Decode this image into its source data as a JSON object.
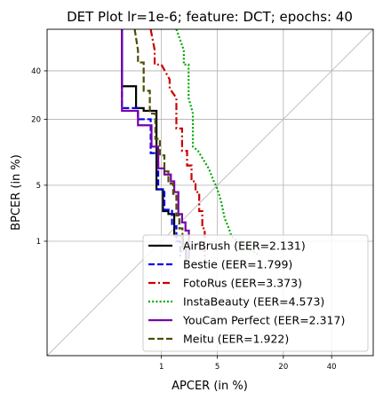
{
  "chart_data": {
    "type": "line",
    "title": "DET Plot lr=1e-6; feature: DCT; epochs: 40",
    "xlabel": "APCER (in %)",
    "ylabel": "BPCER (in %)",
    "x_scale": "probit",
    "y_scale": "probit",
    "xlim": [
      0.01,
      60
    ],
    "ylim": [
      0.01,
      60
    ],
    "x_ticks": [
      "1",
      "5",
      "20",
      "40"
    ],
    "x_tick_values": [
      1,
      5,
      20,
      40
    ],
    "y_ticks": [
      "1",
      "5",
      "20",
      "40"
    ],
    "y_tick_values": [
      1,
      5,
      20,
      40
    ],
    "grid": true,
    "legend_position": "lower right",
    "diagonal": true,
    "series": [
      {
        "name": "AirBrush (EER=2.131)",
        "color": "#000000",
        "dash": "solid",
        "points": [
          [
            0.25,
            60
          ],
          [
            0.25,
            33
          ],
          [
            0.42,
            33
          ],
          [
            0.42,
            24
          ],
          [
            0.55,
            24
          ],
          [
            0.55,
            23
          ],
          [
            0.85,
            23
          ],
          [
            0.85,
            4.5
          ],
          [
            1.05,
            4.5
          ],
          [
            1.05,
            2.5
          ],
          [
            1.25,
            2.5
          ],
          [
            1.25,
            2.3
          ],
          [
            1.5,
            2.3
          ],
          [
            1.5,
            1.2
          ],
          [
            1.95,
            1.2
          ],
          [
            1.95,
            0.9
          ],
          [
            2.131,
            0.9
          ],
          [
            2.131,
            0.5
          ]
        ]
      },
      {
        "name": "Bestie (EER=1.799)",
        "color": "#0000ee",
        "dash": "dashed",
        "points": [
          [
            0.25,
            60
          ],
          [
            0.25,
            24
          ],
          [
            0.45,
            24
          ],
          [
            0.45,
            20
          ],
          [
            0.7,
            20
          ],
          [
            0.7,
            10.5
          ],
          [
            0.9,
            10.5
          ],
          [
            0.9,
            4.5
          ],
          [
            1.1,
            4.5
          ],
          [
            1.1,
            2.6
          ],
          [
            1.4,
            2.6
          ],
          [
            1.4,
            1.6
          ],
          [
            1.6,
            1.6
          ],
          [
            1.6,
            1.0
          ],
          [
            1.799,
            1.0
          ],
          [
            1.799,
            0.6
          ]
        ]
      },
      {
        "name": "FotoRus (EER=3.373)",
        "color": "#cc0000",
        "dash": "dashdot",
        "points": [
          [
            0.7,
            60
          ],
          [
            0.8,
            50
          ],
          [
            0.8,
            43
          ],
          [
            1.0,
            43
          ],
          [
            1.3,
            36
          ],
          [
            1.3,
            32
          ],
          [
            1.6,
            28
          ],
          [
            1.6,
            17
          ],
          [
            1.9,
            17
          ],
          [
            1.9,
            11
          ],
          [
            2.2,
            11
          ],
          [
            2.2,
            8
          ],
          [
            2.5,
            8
          ],
          [
            2.5,
            5.5
          ],
          [
            2.8,
            5.5
          ],
          [
            2.8,
            4.2
          ],
          [
            3.1,
            4.2
          ],
          [
            3.1,
            2.5
          ],
          [
            3.373,
            2.5
          ],
          [
            3.373,
            1.5
          ],
          [
            3.6,
            1.5
          ],
          [
            3.6,
            0.5
          ]
        ]
      },
      {
        "name": "InstaBeauty (EER=4.573)",
        "color": "#00aa00",
        "dash": "dotted",
        "points": [
          [
            1.6,
            60
          ],
          [
            2.0,
            50
          ],
          [
            2.0,
            43
          ],
          [
            2.3,
            43
          ],
          [
            2.3,
            28
          ],
          [
            2.6,
            22
          ],
          [
            2.6,
            12
          ],
          [
            3.0,
            11
          ],
          [
            3.5,
            9
          ],
          [
            4.0,
            7.5
          ],
          [
            4.573,
            5.5
          ],
          [
            4.8,
            5
          ],
          [
            5.2,
            4.0
          ],
          [
            5.5,
            3.2
          ],
          [
            6.0,
            2.0
          ],
          [
            6.5,
            1.6
          ],
          [
            7.0,
            1.2
          ],
          [
            8.0,
            1.0
          ],
          [
            9.5,
            0.85
          ],
          [
            11.5,
            0.7
          ],
          [
            13.0,
            0.62
          ]
        ]
      },
      {
        "name": "YouCam Perfect (EER=2.317)",
        "color": "#7700aa",
        "dash": "solid",
        "points": [
          [
            0.25,
            60
          ],
          [
            0.25,
            23
          ],
          [
            0.45,
            23
          ],
          [
            0.45,
            18
          ],
          [
            0.72,
            18
          ],
          [
            0.72,
            12
          ],
          [
            0.9,
            12
          ],
          [
            0.9,
            7.5
          ],
          [
            1.1,
            7.5
          ],
          [
            1.1,
            6.5
          ],
          [
            1.35,
            6.5
          ],
          [
            1.35,
            5.5
          ],
          [
            1.5,
            5.5
          ],
          [
            1.5,
            4.2
          ],
          [
            1.7,
            4.2
          ],
          [
            1.7,
            2.3
          ],
          [
            1.9,
            2.3
          ],
          [
            1.9,
            1.8
          ],
          [
            2.1,
            1.8
          ],
          [
            2.1,
            1.4
          ],
          [
            2.317,
            1.4
          ],
          [
            2.317,
            0.55
          ]
        ]
      },
      {
        "name": "Meitu (EER=1.922)",
        "color": "#4d4d00",
        "dash": "dashed",
        "points": [
          [
            0.4,
            60
          ],
          [
            0.45,
            50
          ],
          [
            0.45,
            44
          ],
          [
            0.55,
            44
          ],
          [
            0.55,
            31
          ],
          [
            0.68,
            31
          ],
          [
            0.68,
            22
          ],
          [
            0.82,
            22
          ],
          [
            0.82,
            14
          ],
          [
            0.95,
            14
          ],
          [
            0.95,
            10
          ],
          [
            1.1,
            10
          ],
          [
            1.1,
            7
          ],
          [
            1.25,
            7
          ],
          [
            1.25,
            5.2
          ],
          [
            1.45,
            5.2
          ],
          [
            1.45,
            4.0
          ],
          [
            1.6,
            4.0
          ],
          [
            1.6,
            2.2
          ],
          [
            1.75,
            2.2
          ],
          [
            1.75,
            1.5
          ],
          [
            1.922,
            1.5
          ],
          [
            1.922,
            0.7
          ]
        ]
      }
    ]
  }
}
